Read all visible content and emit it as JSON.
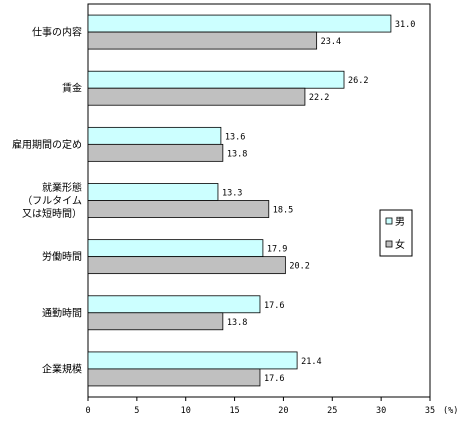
{
  "chart_data": {
    "type": "bar",
    "orientation": "horizontal",
    "categories": [
      [
        "仕事の内容"
      ],
      [
        "賃金"
      ],
      [
        "雇用期間の定め"
      ],
      [
        "就業形態",
        "（フルタイム",
        "又は短時間）"
      ],
      [
        "労働時間"
      ],
      [
        "通勤時間"
      ],
      [
        "企業規模"
      ]
    ],
    "series": [
      {
        "name": "男",
        "color": "#ccffff",
        "values": [
          31.0,
          26.2,
          13.6,
          13.3,
          17.9,
          17.6,
          21.4
        ]
      },
      {
        "name": "女",
        "color": "#c0c0c0",
        "values": [
          23.4,
          22.2,
          13.8,
          18.5,
          20.2,
          13.8,
          17.6
        ]
      }
    ],
    "xlim": [
      0,
      35
    ],
    "xticks": [
      "0",
      "5",
      "10",
      "15",
      "20",
      "25",
      "30",
      "35"
    ],
    "unit_label": "(%)",
    "grid": false,
    "legend_position": "right"
  }
}
